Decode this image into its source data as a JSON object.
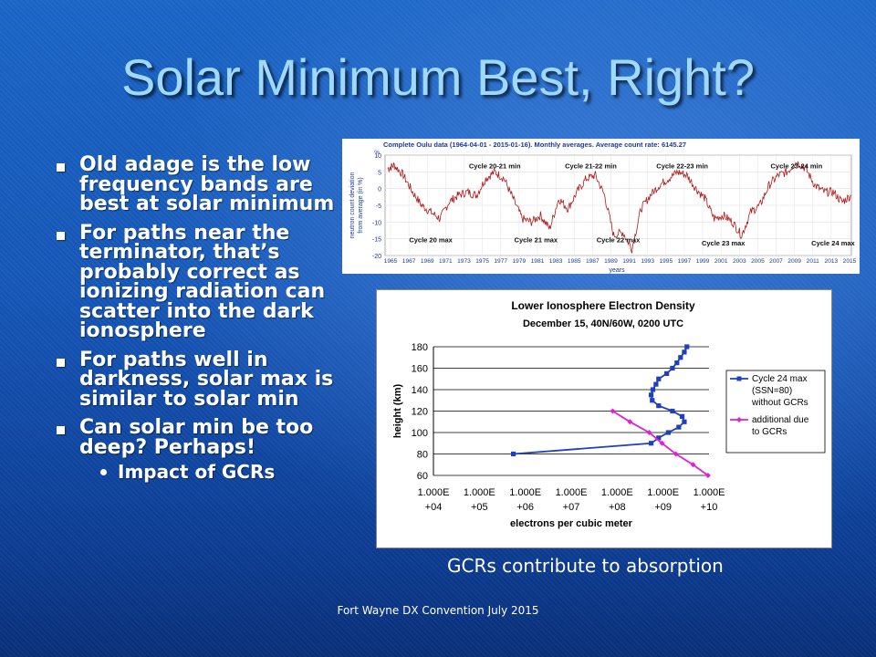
{
  "slide": {
    "title": "Solar Minimum Best, Right?",
    "bullets": [
      "Old adage is the low frequency bands are best at solar minimum",
      "For paths near the terminator, that’s probably correct as ionizing radiation can scatter into the dark ionosphere",
      "For paths well in darkness, solar max is similar to solar min",
      "Can solar min be too deep? Perhaps!"
    ],
    "sub_bullet": "Impact of GCRs",
    "caption": "GCRs contribute to absorption",
    "footer": "Fort Wayne DX Convention July 2015"
  },
  "chart_data": [
    {
      "type": "line",
      "title": "Complete Oulu data (1964-04-01 - 2015-01-16). Monthly averages. Average count rate: 6145.27",
      "ylabel": "neutron count deviation from average (in %)",
      "xlabel": "years",
      "ylim": [
        -20,
        10
      ],
      "yticks": [
        10,
        5,
        0,
        -5,
        -10,
        -15,
        -20
      ],
      "xlim": [
        1964,
        2015
      ],
      "xticks": [
        "1965",
        "1967",
        "1969",
        "1971",
        "1973",
        "1975",
        "1977",
        "1979",
        "1981",
        "1983",
        "1985",
        "1987",
        "1989",
        "1991",
        "1993",
        "1995",
        "1997",
        "1999",
        "2001",
        "2003",
        "2005",
        "2007",
        "2009",
        "2011",
        "2013",
        "2015"
      ],
      "annotations": [
        {
          "text": "Cycle 20-21 min",
          "x": 1976,
          "y": 6
        },
        {
          "text": "Cycle 21-22 min",
          "x": 1986.5,
          "y": 6
        },
        {
          "text": "Cycle 22-23 min",
          "x": 1996.5,
          "y": 6
        },
        {
          "text": "Cycle 23-24 min",
          "x": 2009,
          "y": 6
        },
        {
          "text": "Cycle 20 max",
          "x": 1969,
          "y": -16
        },
        {
          "text": "Cycle 21 max",
          "x": 1980.5,
          "y": -16
        },
        {
          "text": "Cycle 22 max",
          "x": 1989.5,
          "y": -16
        },
        {
          "text": "Cycle 23 max",
          "x": 2001,
          "y": -17
        },
        {
          "text": "Cycle 24 max",
          "x": 2013,
          "y": -17
        }
      ],
      "series": [
        {
          "x": [
            1964.3,
            1965,
            1966,
            1967,
            1968,
            1969,
            1970,
            1971,
            1972,
            1973,
            1974,
            1975,
            1976,
            1977,
            1978,
            1979,
            1980,
            1981,
            1982,
            1983,
            1984,
            1985,
            1986,
            1987,
            1988,
            1989,
            1990,
            1991,
            1992,
            1993,
            1994,
            1995,
            1996,
            1997,
            1998,
            1999,
            2000,
            2001,
            2002,
            2003,
            2004,
            2005,
            2006,
            2007,
            2008,
            2009,
            2010,
            2011,
            2012,
            2013,
            2014,
            2015
          ],
          "values": [
            6,
            7,
            4,
            -1,
            -5,
            -7,
            -9,
            -4,
            -2,
            -1,
            -2,
            3,
            5,
            3,
            -3,
            -9,
            -10,
            -8,
            -12,
            -3,
            -6,
            -1,
            3,
            4,
            -2,
            -14,
            -13,
            -18,
            -6,
            -2,
            1,
            3,
            5,
            4,
            0,
            -3,
            -9,
            -8,
            -10,
            -14,
            -7,
            -5,
            1,
            4,
            5,
            8,
            6,
            1,
            -1,
            -1,
            -4,
            -2
          ]
        }
      ],
      "color": "#b01818"
    },
    {
      "type": "line",
      "title": "Lower Ionosphere Electron Density",
      "subtitle": "December 15, 40N/60W, 0200 UTC",
      "xlabel": "electrons per cubic meter",
      "ylabel": "height (km)",
      "xscale": "log",
      "xlim": [
        10000.0,
        10000000000.0
      ],
      "xticks": [
        "1.000E +04",
        "1.000E +05",
        "1.000E +06",
        "1.000E +07",
        "1.000E +08",
        "1.000E +09",
        "1.000E +10"
      ],
      "ylim": [
        60,
        180
      ],
      "yticks": [
        60,
        80,
        100,
        120,
        140,
        160,
        180
      ],
      "grid": true,
      "legend": "right",
      "series": [
        {
          "name": "Cycle 24 max (SSN=80) without GCRs",
          "color": "#1f3fbf",
          "marker": "square",
          "x": [
            550000.0,
            550000000.0,
            800000000.0,
            1300000000.0,
            2200000000.0,
            2900000000.0,
            2600000000.0,
            1600000000.0,
            800000000.0,
            580000000.0,
            550000000.0,
            600000000.0,
            700000000.0,
            800000000.0,
            1200000000.0,
            1600000000.0,
            2000000000.0,
            2400000000.0,
            2900000000.0,
            3300000000.0
          ],
          "values": [
            80,
            90,
            95,
            100,
            105,
            110,
            115,
            120,
            125,
            130,
            135,
            140,
            145,
            150,
            155,
            160,
            165,
            170,
            175,
            180
          ]
        },
        {
          "name": "additional due to GCRs",
          "color": "#e020d8",
          "marker": "diamond",
          "x": [
            80000000.0,
            190000000.0,
            500000000.0,
            950000000.0,
            1900000000.0,
            4500000000.0,
            9500000000.0
          ],
          "values": [
            120,
            110,
            100,
            90,
            80,
            70,
            60
          ]
        }
      ]
    }
  ]
}
